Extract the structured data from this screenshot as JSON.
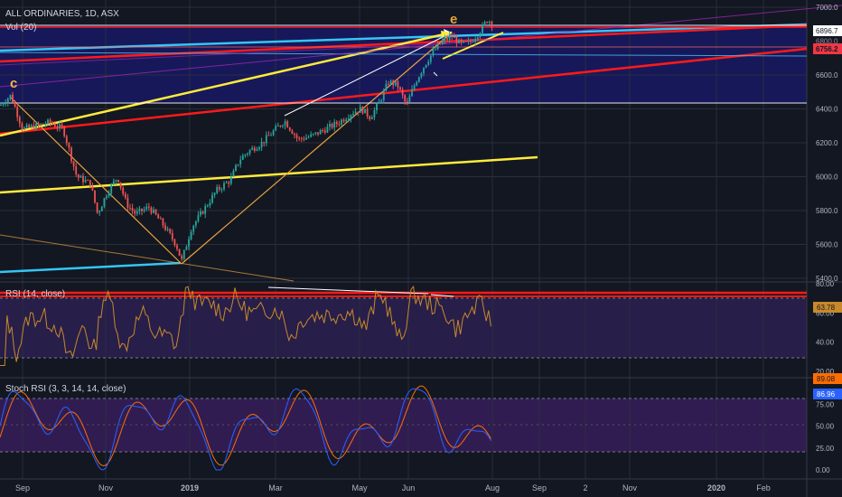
{
  "header": {
    "symbol": "ALL ORDINARIES, 1D, ASX",
    "volume": "Vol (20)",
    "rsi": "RSI (14, close)",
    "stoch": "Stoch RSI (3, 3, 14, 14, close)"
  },
  "chart_data": {
    "type": "candlestick",
    "price_axis": {
      "ylim": [
        5400,
        7000
      ],
      "ticks": [
        "7000.0",
        "6600.0",
        "6400.0",
        "6200.0",
        "6000.0",
        "5800.0",
        "5600.0",
        "5400.0"
      ]
    },
    "price_badges": [
      {
        "label": "6896.7",
        "color": "#d1d4dc"
      },
      {
        "label": "6800.0",
        "color": "#8a8d99"
      },
      {
        "label": "6756.2",
        "color": "#f23645"
      }
    ],
    "rsi_axis": {
      "ylim": [
        20,
        80
      ],
      "ticks": [
        "80.00",
        "60.00",
        "40.00",
        "20.00"
      ],
      "badge": "63.78"
    },
    "stoch_axis": {
      "ylim": [
        0,
        100
      ],
      "ticks": [
        "75.00",
        "50.00",
        "25.00",
        "0.00"
      ],
      "badges": [
        "89.08",
        "86.96"
      ]
    },
    "x_ticks": [
      "Sep",
      "Nov",
      "2019",
      "Mar",
      "May",
      "Jun",
      "Aug",
      "Sep",
      "2",
      "Nov",
      "2020",
      "Feb"
    ],
    "wave_labels": [
      "c",
      "e"
    ],
    "colors": {
      "bull": "#26a69a",
      "bear": "#ef5350",
      "rsi": "#c8892b",
      "stoch_k": "#2962ff",
      "stoch_d": "#ff6d00",
      "fill": "#1a1a6e",
      "trend_red": "#ff1a1a",
      "trend_yellow": "#ffeb3b",
      "trend_cyan": "#34c6f4"
    }
  }
}
